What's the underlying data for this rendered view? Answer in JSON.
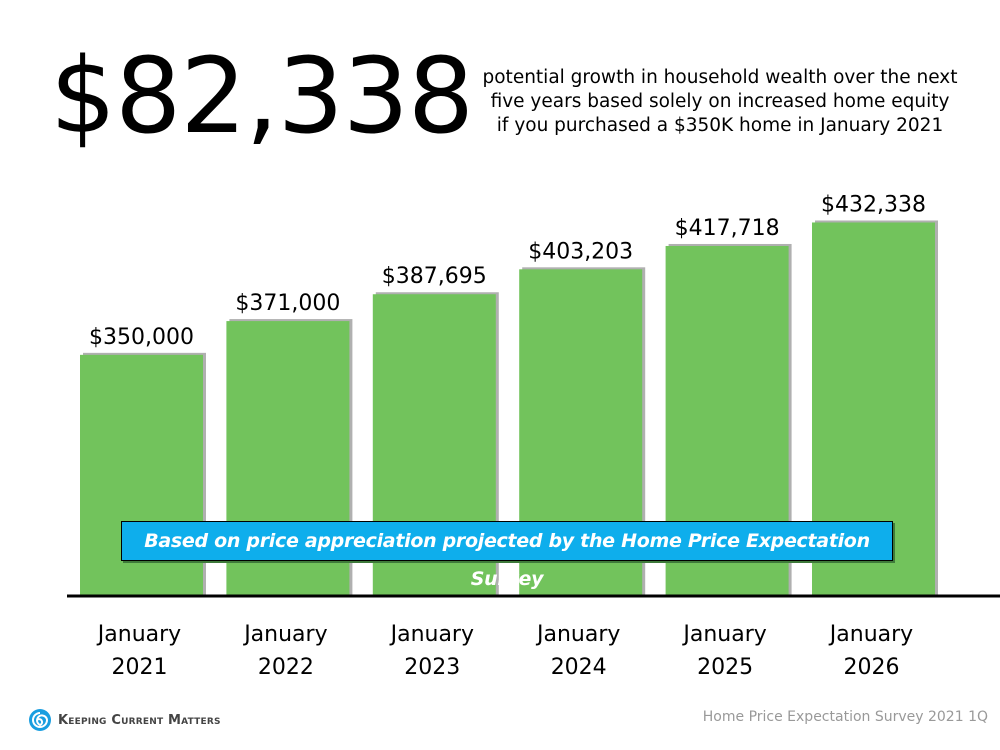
{
  "headline": {
    "value": "$82,338",
    "description_lines": [
      "potential growth in household wealth over the next",
      "five years based solely on increased home equity",
      "if you purchased a $350K home in January 2021"
    ]
  },
  "banner": {
    "text": "Based on price appreciation projected by the Home Price Expectation Survey"
  },
  "footer": {
    "logo_text": "Keeping Current Matters",
    "logo_icon": "swirl-icon",
    "source": "Home Price Expectation Survey 2021 1Q"
  },
  "colors": {
    "bar": "#72c35c",
    "bar_shadow": "#b0b0b0",
    "banner": "#0eaeec",
    "axis": "#000000",
    "logo_blue": "#1a9ee0"
  },
  "chart_data": {
    "type": "bar",
    "title": "",
    "xlabel": "",
    "ylabel": "",
    "categories": [
      [
        "January",
        "2021"
      ],
      [
        "January",
        "2022"
      ],
      [
        "January",
        "2023"
      ],
      [
        "January",
        "2024"
      ],
      [
        "January",
        "2025"
      ],
      [
        "January",
        "2026"
      ]
    ],
    "values": [
      350000,
      371000,
      387695,
      403203,
      417718,
      432338
    ],
    "data_labels": [
      "$350,000",
      "$371,000",
      "$387,695",
      "$403,203",
      "$417,718",
      "$432,338"
    ],
    "ylim": [
      200000,
      460000
    ],
    "grid": false,
    "legend": "none"
  }
}
